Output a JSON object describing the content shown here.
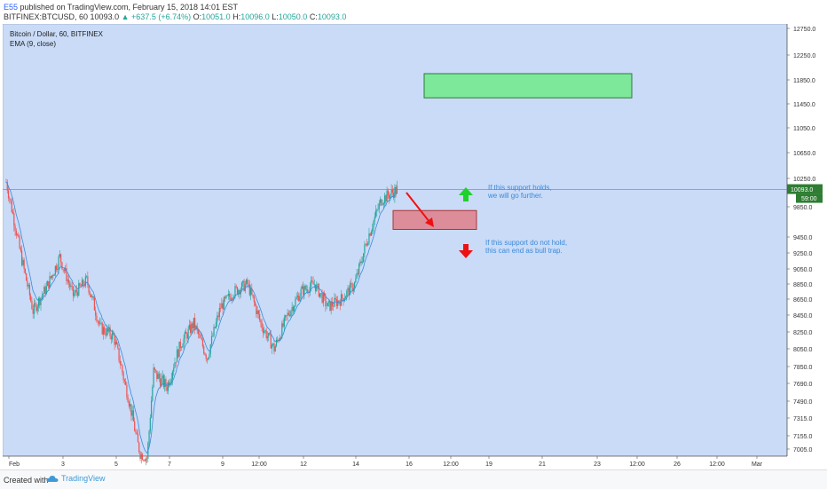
{
  "header": {
    "author": "E55",
    "published": "published on TradingView.com, February 15, 2018 14:01 EST",
    "symbol": "BITFINEX:BTCUSD, 60",
    "last": "10093.0",
    "change": "+637.5 (+6.74%)",
    "ohlc": [
      {
        "label": "O:",
        "value": "10051.0"
      },
      {
        "label": "H:",
        "value": "10096.0"
      },
      {
        "label": "L:",
        "value": "10050.0"
      },
      {
        "label": "C:",
        "value": "10093.0"
      }
    ]
  },
  "legend": {
    "title": "Bitcoin / Dollar, 60, BITFINEX",
    "indicator": "EMA (9, close)"
  },
  "footer": {
    "created": "Created with",
    "brand": "TradingView"
  },
  "colors": {
    "background": "#c9dbf7",
    "bull": "#26a69a",
    "bear": "#ef5350",
    "ema": "#3b8ad9",
    "support_box": "#e07f8a",
    "target_box": "#7ee89a",
    "arrow_up": "#1fd12a",
    "arrow_down": "#ee1111",
    "annotation_text": "#3b8ad9"
  },
  "chart_data": {
    "type": "candlestick",
    "ylim": [
      6900,
      12800
    ],
    "y_ticks": [
      "12750.0",
      "12250.0",
      "11850.0",
      "11450.0",
      "11050.0",
      "10650.0",
      "10250.0",
      "9850.0",
      "9450.0",
      "9250.0",
      "9050.0",
      "8850.0",
      "8650.0",
      "8450.0",
      "8250.0",
      "8050.0",
      "7850.0",
      "7690.0",
      "7490.0",
      "7315.0",
      "7155.0",
      "7005.0"
    ],
    "x_ticks": [
      "Feb",
      "3",
      "5",
      "7",
      "9",
      "12:00",
      "12",
      "14",
      "16",
      "12:00",
      "19",
      "21",
      "23",
      "12:00",
      "26",
      "12:00",
      "Mar"
    ],
    "close_path": [
      [
        "Feb 1",
        10200
      ],
      [
        "Feb 1 12:00",
        9300
      ],
      [
        "Feb 2",
        8500
      ],
      [
        "Feb 2 12:00",
        8800
      ],
      [
        "Feb 3",
        9200
      ],
      [
        "Feb 3 12:00",
        8700
      ],
      [
        "Feb 4",
        8900
      ],
      [
        "Feb 4 12:00",
        8300
      ],
      [
        "Feb 5",
        8200
      ],
      [
        "Feb 5 12:00",
        7600
      ],
      [
        "Feb 6",
        6950
      ],
      [
        "Feb 6 06:00",
        6900
      ],
      [
        "Feb 6 12:00",
        7800
      ],
      [
        "Feb 7",
        7650
      ],
      [
        "Feb 7 12:00",
        8100
      ],
      [
        "Feb 8",
        8350
      ],
      [
        "Feb 8 12:00",
        7950
      ],
      [
        "Feb 9",
        8550
      ],
      [
        "Feb 9 12:00",
        8750
      ],
      [
        "Feb 10",
        8850
      ],
      [
        "Feb 10 12:00",
        8350
      ],
      [
        "Feb 11",
        8050
      ],
      [
        "Feb 11 12:00",
        8450
      ],
      [
        "Feb 12",
        8750
      ],
      [
        "Feb 12 12:00",
        8850
      ],
      [
        "Feb 13",
        8550
      ],
      [
        "Feb 13 12:00",
        8650
      ],
      [
        "Feb 14",
        8850
      ],
      [
        "Feb 14 12:00",
        9450
      ],
      [
        "Feb 15",
        9950
      ],
      [
        "Feb 15 14:00",
        10093
      ]
    ],
    "current_price": "10093.0",
    "countdown": "59:00",
    "annotations": [
      {
        "line1": "If this support holds,",
        "line2": "we will go further."
      },
      {
        "line1": "If this support do not hold,",
        "line2": "this can end as bull trap."
      }
    ],
    "zones": [
      {
        "name": "support",
        "from": 9550,
        "to": 9800
      },
      {
        "name": "target",
        "from": 11550,
        "to": 11950
      }
    ]
  }
}
